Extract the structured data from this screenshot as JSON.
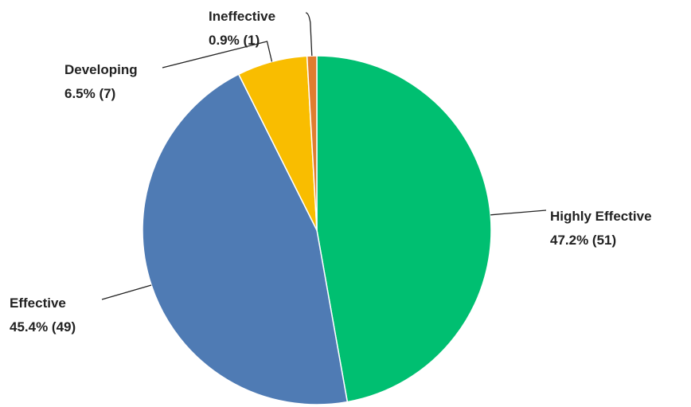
{
  "chart_data": {
    "type": "pie",
    "title": "",
    "start": "top, clockwise",
    "slices": [
      {
        "name": "Highly Effective",
        "percent": 47.2,
        "count": 51,
        "color": "#00bf71",
        "value_label": "47.2% (51)"
      },
      {
        "name": "Effective",
        "percent": 45.4,
        "count": 49,
        "color": "#4f7bb4",
        "value_label": "45.4% (49)"
      },
      {
        "name": "Developing",
        "percent": 6.5,
        "count": 7,
        "color": "#f9bd00",
        "value_label": "6.5% (7)"
      },
      {
        "name": "Ineffective",
        "percent": 0.9,
        "count": 1,
        "color": "#e07d2f",
        "value_label": "0.9% (1)"
      }
    ]
  }
}
